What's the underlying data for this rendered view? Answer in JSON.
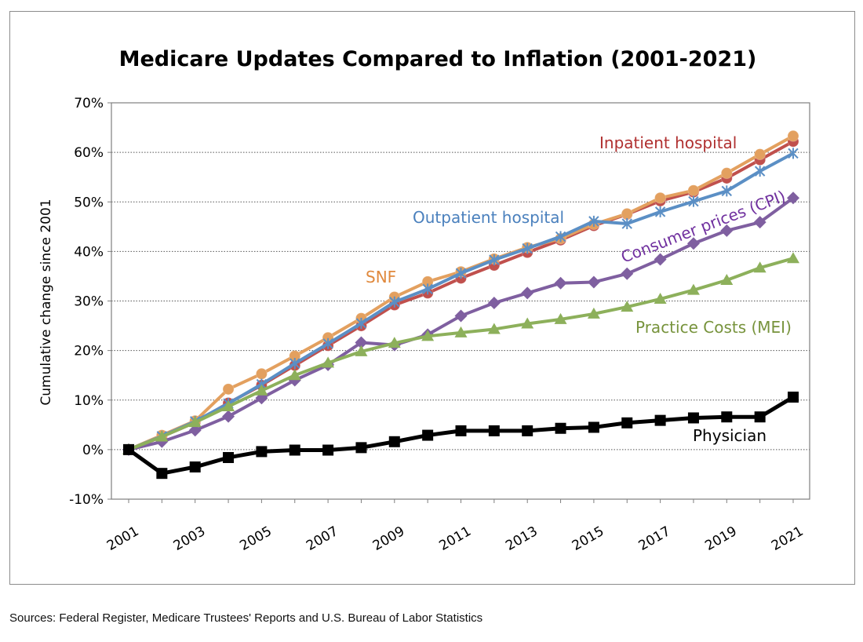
{
  "chart_data": {
    "type": "line",
    "title": "Medicare Updates Compared to Inflation (2001-2021)",
    "ylabel": "Cumulative change since 2001",
    "xlabel": "",
    "ylim": [
      -10,
      70
    ],
    "xlim": [
      2001,
      2021
    ],
    "y_ticks": [
      "70%",
      "60%",
      "50%",
      "40%",
      "30%",
      "20%",
      "10%",
      "0%",
      "-10%"
    ],
    "x_ticks": [
      "2001",
      "2003",
      "2005",
      "2007",
      "2009",
      "2011",
      "2013",
      "2015",
      "2017",
      "2019",
      "2021"
    ],
    "grid": "horizontal dotted",
    "legend": "inline labels",
    "x": [
      2001,
      2002,
      2003,
      2004,
      2005,
      2006,
      2007,
      2008,
      2009,
      2010,
      2011,
      2012,
      2013,
      2014,
      2015,
      2016,
      2017,
      2018,
      2019,
      2020,
      2021
    ],
    "series": [
      {
        "name": "Inpatient hospital",
        "color": "#c0504d",
        "marker": "circle",
        "values": [
          0,
          2.6,
          5.5,
          9.4,
          13.0,
          17.0,
          21.0,
          25.0,
          29.2,
          31.6,
          34.6,
          37.2,
          39.8,
          42.3,
          45.2,
          47.5,
          50.2,
          52.0,
          54.8,
          58.5,
          62.2
        ]
      },
      {
        "name": "SNF",
        "color": "#e3a05f",
        "marker": "circle",
        "values": [
          0,
          2.9,
          5.8,
          12.2,
          15.3,
          18.9,
          22.6,
          26.5,
          30.8,
          33.9,
          35.9,
          38.5,
          40.8,
          42.6,
          45.5,
          47.6,
          50.8,
          52.3,
          55.8,
          59.6,
          63.3
        ]
      },
      {
        "name": "Outpatient hospital",
        "color": "#5b8fc5",
        "marker": "x",
        "values": [
          0,
          2.7,
          5.7,
          9.3,
          13.2,
          17.4,
          21.4,
          25.5,
          29.8,
          32.4,
          35.6,
          38.3,
          40.6,
          43.0,
          46.1,
          45.6,
          48.0,
          50.1,
          52.2,
          56.2,
          59.8
        ]
      },
      {
        "name": "Consumer prices (CPI)",
        "color": "#7f5fa0",
        "marker": "diamond",
        "values": [
          0,
          1.6,
          3.9,
          6.7,
          10.4,
          14.0,
          17.1,
          21.6,
          21.1,
          23.2,
          27.0,
          29.6,
          31.6,
          33.6,
          33.8,
          35.5,
          38.4,
          41.6,
          44.2,
          45.9,
          50.8
        ]
      },
      {
        "name": "Practice Costs (MEI)",
        "color": "#8db05b",
        "marker": "triangle",
        "values": [
          0,
          2.6,
          5.5,
          8.7,
          11.9,
          15.0,
          17.5,
          19.8,
          21.5,
          22.9,
          23.6,
          24.3,
          25.4,
          26.3,
          27.4,
          28.8,
          30.4,
          32.2,
          34.2,
          36.7,
          38.6
        ]
      },
      {
        "name": "Physician",
        "color": "#000000",
        "marker": "square",
        "values": [
          0,
          -4.8,
          -3.5,
          -1.6,
          -0.4,
          -0.1,
          -0.1,
          0.4,
          1.6,
          2.9,
          3.8,
          3.8,
          3.8,
          4.3,
          4.5,
          5.4,
          5.9,
          6.4,
          6.6,
          6.6,
          10.6
        ]
      }
    ]
  },
  "source_note": "Sources:  Federal Register, Medicare Trustees' Reports and U.S. Bureau of Labor Statistics"
}
